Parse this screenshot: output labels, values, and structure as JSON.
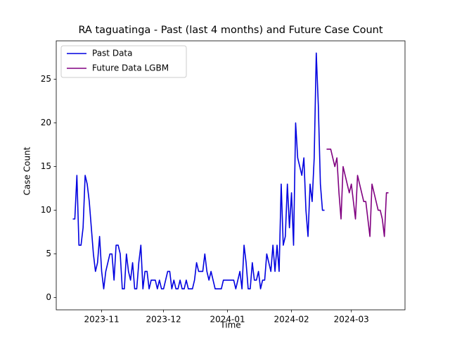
{
  "chart_data": {
    "type": "line",
    "title": "RA taguatinga - Past (last 4 months) and Future Case Count",
    "x_label": "Time",
    "y_label": "Case Count",
    "x": [
      "2023-10-18",
      "2023-10-19",
      "2023-10-20",
      "2023-10-21",
      "2023-10-22",
      "2023-10-23",
      "2023-10-24",
      "2023-10-25",
      "2023-10-26",
      "2023-10-27",
      "2023-10-28",
      "2023-10-29",
      "2023-10-30",
      "2023-10-31",
      "2023-11-01",
      "2023-11-02",
      "2023-11-03",
      "2023-11-04",
      "2023-11-05",
      "2023-11-06",
      "2023-11-07",
      "2023-11-08",
      "2023-11-09",
      "2023-11-10",
      "2023-11-11",
      "2023-11-12",
      "2023-11-13",
      "2023-11-14",
      "2023-11-15",
      "2023-11-16",
      "2023-11-17",
      "2023-11-18",
      "2023-11-19",
      "2023-11-20",
      "2023-11-21",
      "2023-11-22",
      "2023-11-23",
      "2023-11-24",
      "2023-11-25",
      "2023-11-26",
      "2023-11-27",
      "2023-11-28",
      "2023-11-29",
      "2023-11-30",
      "2023-12-01",
      "2023-12-02",
      "2023-12-03",
      "2023-12-04",
      "2023-12-05",
      "2023-12-06",
      "2023-12-07",
      "2023-12-08",
      "2023-12-09",
      "2023-12-10",
      "2023-12-11",
      "2023-12-12",
      "2023-12-13",
      "2023-12-14",
      "2023-12-15",
      "2023-12-16",
      "2023-12-17",
      "2023-12-18",
      "2023-12-19",
      "2023-12-20",
      "2023-12-21",
      "2023-12-22",
      "2023-12-23",
      "2023-12-24",
      "2023-12-25",
      "2023-12-26",
      "2023-12-27",
      "2023-12-28",
      "2023-12-29",
      "2023-12-30",
      "2023-12-31",
      "2024-01-01",
      "2024-01-02",
      "2024-01-03",
      "2024-01-04",
      "2024-01-05",
      "2024-01-06",
      "2024-01-07",
      "2024-01-08",
      "2024-01-09",
      "2024-01-10",
      "2024-01-11",
      "2024-01-12",
      "2024-01-13",
      "2024-01-14",
      "2024-01-15",
      "2024-01-16",
      "2024-01-17",
      "2024-01-18",
      "2024-01-19",
      "2024-01-20",
      "2024-01-21",
      "2024-01-22",
      "2024-01-23",
      "2024-01-24",
      "2024-01-25",
      "2024-01-26",
      "2024-01-27",
      "2024-01-28",
      "2024-01-29",
      "2024-01-30",
      "2024-01-31",
      "2024-02-01",
      "2024-02-02",
      "2024-02-03",
      "2024-02-04",
      "2024-02-05",
      "2024-02-06",
      "2024-02-07",
      "2024-02-08",
      "2024-02-09",
      "2024-02-10",
      "2024-02-11",
      "2024-02-12",
      "2024-02-13",
      "2024-02-14",
      "2024-02-15",
      "2024-02-16",
      "2024-02-17",
      "2024-02-18",
      "2024-02-19",
      "2024-02-20",
      "2024-02-21",
      "2024-02-22",
      "2024-02-23",
      "2024-02-24",
      "2024-02-25",
      "2024-02-26",
      "2024-02-27",
      "2024-02-28",
      "2024-02-29",
      "2024-03-01",
      "2024-03-02",
      "2024-03-03",
      "2024-03-04",
      "2024-03-05",
      "2024-03-06",
      "2024-03-07",
      "2024-03-08",
      "2024-03-09",
      "2024-03-10",
      "2024-03-11",
      "2024-03-12",
      "2024-03-13",
      "2024-03-14",
      "2024-03-15",
      "2024-03-16",
      "2024-03-17",
      "2024-03-18",
      "2024-03-19"
    ],
    "series": [
      {
        "name": "Past Data",
        "color": "#0000e0",
        "values": [
          9,
          9,
          14,
          6,
          6,
          8,
          14,
          13,
          11,
          8,
          5,
          3,
          4,
          7,
          3,
          1,
          3,
          4,
          5,
          5,
          2,
          6,
          6,
          5,
          1,
          1,
          5,
          3,
          2,
          4,
          1,
          1,
          4,
          6,
          1,
          3,
          3,
          1,
          2,
          2,
          2,
          1,
          2,
          1,
          1,
          2,
          3,
          3,
          1,
          2,
          1,
          1,
          2,
          1,
          1,
          2,
          1,
          1,
          1,
          2,
          4,
          3,
          3,
          3,
          5,
          3,
          2,
          3,
          2,
          1,
          1,
          1,
          1,
          2,
          2,
          2,
          2,
          2,
          2,
          1,
          2,
          3,
          1,
          6,
          4,
          1,
          1,
          4,
          2,
          2,
          3,
          1,
          2,
          2,
          5,
          4,
          3,
          6,
          3,
          6,
          3,
          13,
          6,
          7,
          13,
          8,
          12,
          6,
          20,
          16,
          15,
          14,
          16,
          10,
          7,
          13,
          11,
          16,
          28,
          22,
          13,
          10,
          10,
          null,
          null,
          null,
          null,
          null,
          null,
          null,
          null,
          null,
          null,
          null,
          null,
          null,
          null,
          null,
          null,
          null,
          null,
          null,
          null,
          null,
          null,
          null,
          null,
          null,
          null,
          null,
          null,
          null,
          null,
          null
        ]
      },
      {
        "name": "Future Data LGBM",
        "color": "#800080",
        "values": [
          null,
          null,
          null,
          null,
          null,
          null,
          null,
          null,
          null,
          null,
          null,
          null,
          null,
          null,
          null,
          null,
          null,
          null,
          null,
          null,
          null,
          null,
          null,
          null,
          null,
          null,
          null,
          null,
          null,
          null,
          null,
          null,
          null,
          null,
          null,
          null,
          null,
          null,
          null,
          null,
          null,
          null,
          null,
          null,
          null,
          null,
          null,
          null,
          null,
          null,
          null,
          null,
          null,
          null,
          null,
          null,
          null,
          null,
          null,
          null,
          null,
          null,
          null,
          null,
          null,
          null,
          null,
          null,
          null,
          null,
          null,
          null,
          null,
          null,
          null,
          null,
          null,
          null,
          null,
          null,
          null,
          null,
          null,
          null,
          null,
          null,
          null,
          null,
          null,
          null,
          null,
          null,
          null,
          null,
          null,
          null,
          null,
          null,
          null,
          null,
          null,
          null,
          null,
          null,
          null,
          null,
          null,
          null,
          null,
          null,
          null,
          null,
          null,
          null,
          null,
          null,
          null,
          null,
          null,
          null,
          null,
          null,
          null,
          17,
          17,
          17,
          16,
          15,
          16,
          12,
          9,
          15,
          14,
          13,
          12,
          13,
          11,
          9,
          14,
          13,
          12,
          11,
          11,
          9,
          7,
          13,
          12,
          11,
          10,
          10,
          9,
          7,
          12,
          12
        ]
      }
    ],
    "xlim": [
      "2023-10-10",
      "2024-03-27"
    ],
    "xticks": [
      {
        "value": "2023-11-01",
        "label": "2023-11"
      },
      {
        "value": "2023-12-01",
        "label": "2023-12"
      },
      {
        "value": "2024-01-01",
        "label": "2024-01"
      },
      {
        "value": "2024-02-01",
        "label": "2024-02"
      },
      {
        "value": "2024-03-01",
        "label": "2024-03"
      }
    ],
    "ylim": [
      -1.4,
      29.4
    ],
    "yticks": [
      0,
      5,
      10,
      15,
      20,
      25
    ],
    "legend": "upper left"
  }
}
